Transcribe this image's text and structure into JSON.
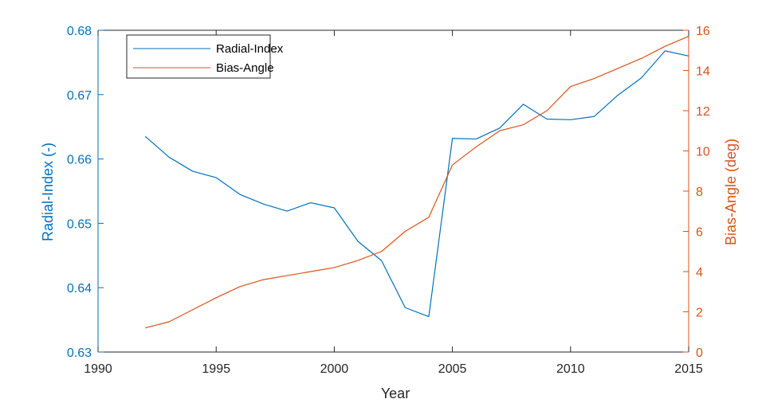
{
  "colors": {
    "left_axis": "#0072BD",
    "right_axis": "#D95319",
    "axis_black": "#262626",
    "background": "#ffffff"
  },
  "chart_data": {
    "type": "line",
    "xlabel": "Year",
    "ylabel_left": "Radial-Index (-)",
    "ylabel_right": "Bias-Angle (deg)",
    "xlim": [
      1990,
      2015
    ],
    "ylim_left": [
      0.63,
      0.68
    ],
    "ylim_right": [
      0,
      16
    ],
    "x_ticks": [
      1990,
      1995,
      2000,
      2005,
      2010,
      2015
    ],
    "y_left_ticks": [
      "0.63",
      "0.64",
      "0.65",
      "0.66",
      "0.67",
      "0.68"
    ],
    "y_right_ticks": [
      "0",
      "2",
      "4",
      "6",
      "8",
      "10",
      "12",
      "14",
      "16"
    ],
    "grid": false,
    "legend_position": "top-left",
    "x": [
      1992,
      1993,
      1994,
      1995,
      1996,
      1997,
      1998,
      1999,
      2000,
      2001,
      2002,
      2003,
      2004,
      2005,
      2006,
      2007,
      2008,
      2009,
      2010,
      2011,
      2012,
      2013,
      2014,
      2015
    ],
    "series": [
      {
        "name": "Radial-Index",
        "axis": "left",
        "color": "#0072BD",
        "values": [
          0.6635,
          0.6603,
          0.6581,
          0.6571,
          0.6545,
          0.653,
          0.6519,
          0.6532,
          0.6524,
          0.6472,
          0.6442,
          0.6369,
          0.6355,
          0.6632,
          0.6631,
          0.6648,
          0.6685,
          0.6662,
          0.6661,
          0.6666,
          0.6699,
          0.6726,
          0.6768,
          0.676
        ]
      },
      {
        "name": "Bias-Angle",
        "axis": "right",
        "color": "#D95319",
        "values": [
          1.2,
          1.5,
          2.1,
          2.7,
          3.25,
          3.6,
          3.8,
          4.0,
          4.2,
          4.55,
          5.0,
          6.0,
          6.7,
          9.3,
          10.2,
          11.0,
          11.3,
          12.0,
          13.2,
          13.6,
          14.1,
          14.6,
          15.2,
          15.7
        ]
      }
    ]
  }
}
